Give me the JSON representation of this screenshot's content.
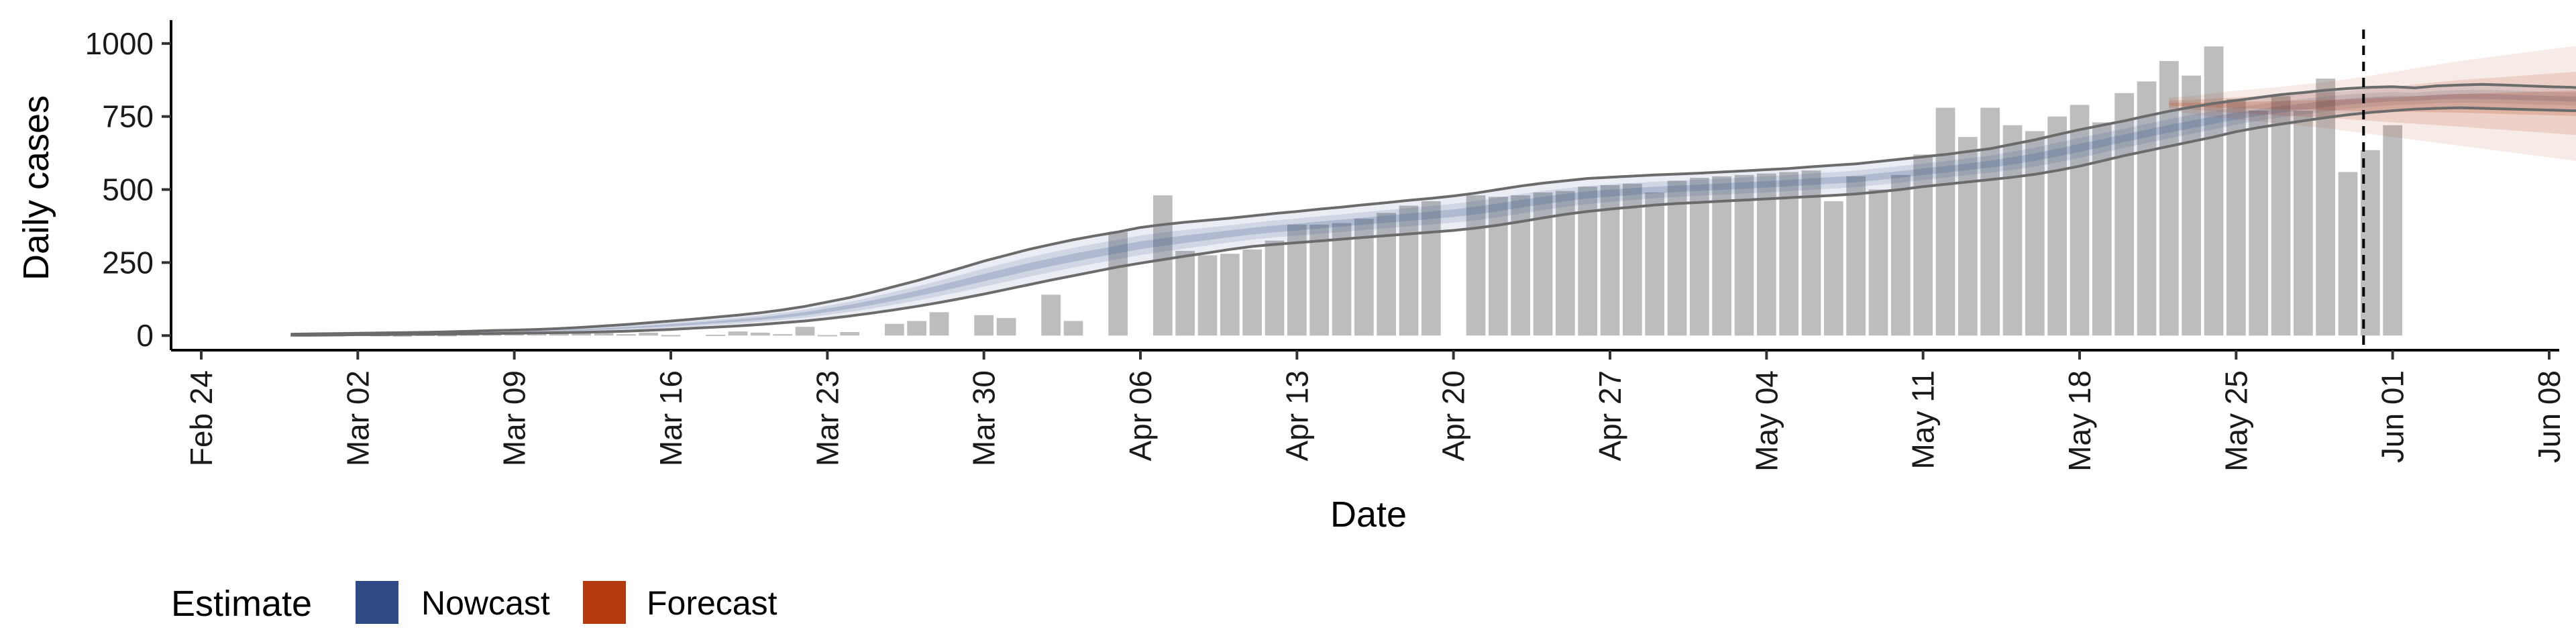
{
  "chart_data": {
    "type": "bar",
    "title": "",
    "xlabel": "Date",
    "ylabel": "Daily cases",
    "x_ticks": [
      "Feb 24",
      "Mar 02",
      "Mar 09",
      "Mar 16",
      "Mar 23",
      "Mar 30",
      "Apr 06",
      "Apr 13",
      "Apr 20",
      "Apr 27",
      "May 04",
      "May 11",
      "May 18",
      "May 25",
      "Jun 01",
      "Jun 08"
    ],
    "y_ticks": [
      "0",
      "250",
      "500",
      "750",
      "1000"
    ],
    "xlim": [
      "2020-02-24",
      "2020-06-08"
    ],
    "ylim": [
      -50,
      1080
    ],
    "grid": false,
    "legend_position": "bottom-left",
    "legend": {
      "title": "Estimate",
      "items": [
        {
          "label": "Nowcast",
          "color": "#2f4b85"
        },
        {
          "label": "Forecast",
          "color": "#b33b0f"
        }
      ]
    },
    "bar_color": "#bdbdbd",
    "forecast_start": "2020-05-31",
    "cases": {
      "start": "2020-02-29",
      "values": [
        0,
        2,
        3,
        2,
        1,
        3,
        2,
        4,
        5,
        6,
        7,
        10,
        12,
        8,
        5,
        10,
        2,
        0,
        3,
        14,
        10,
        5,
        30,
        2,
        12,
        0,
        40,
        50,
        80,
        0,
        70,
        60,
        0,
        140,
        50,
        0,
        355,
        0,
        480,
        290,
        275,
        280,
        295,
        325,
        380,
        380,
        385,
        400,
        420,
        445,
        460,
        0,
        480,
        475,
        480,
        490,
        495,
        510,
        515,
        520,
        490,
        530,
        540,
        545,
        550,
        555,
        560,
        565,
        460,
        545,
        500,
        550,
        620,
        780,
        680,
        780,
        720,
        700,
        750,
        790,
        730,
        830,
        870,
        940,
        890,
        990,
        810,
        770,
        820,
        770,
        880,
        560,
        635,
        720
      ]
    },
    "nowcast": {
      "start": "2020-02-28",
      "upper": [
        5,
        6,
        7,
        8,
        9,
        10,
        11,
        13,
        15,
        17,
        19,
        21,
        24,
        28,
        33,
        38,
        44,
        50,
        56,
        63,
        70,
        78,
        88,
        100,
        115,
        130,
        148,
        168,
        188,
        210,
        232,
        255,
        275,
        295,
        312,
        328,
        342,
        355,
        370,
        380,
        388,
        395,
        402,
        410,
        418,
        425,
        433,
        440,
        448,
        455,
        463,
        470,
        478,
        488,
        500,
        512,
        522,
        530,
        538,
        542,
        546,
        550,
        553,
        556,
        560,
        564,
        568,
        572,
        578,
        583,
        588,
        596,
        604,
        612,
        620,
        630,
        640,
        655,
        670,
        688,
        705,
        720,
        735,
        752,
        768,
        782,
        795,
        805,
        815,
        825,
        832,
        840,
        846,
        850,
        852,
        848,
        855,
        858,
        860,
        858,
        855,
        852,
        850,
        845,
        840,
        835,
        830,
        825,
        820
      ],
      "lower": [
        1,
        1,
        2,
        3,
        3,
        4,
        5,
        5,
        6,
        7,
        8,
        9,
        10,
        11,
        13,
        15,
        18,
        21,
        25,
        29,
        33,
        38,
        44,
        50,
        58,
        67,
        77,
        88,
        100,
        113,
        127,
        142,
        158,
        174,
        190,
        205,
        220,
        235,
        248,
        260,
        272,
        283,
        295,
        305,
        312,
        318,
        324,
        330,
        336,
        342,
        348,
        354,
        360,
        368,
        378,
        390,
        403,
        415,
        425,
        433,
        440,
        447,
        452,
        456,
        460,
        464,
        468,
        472,
        476,
        480,
        485,
        492,
        500,
        510,
        518,
        526,
        534,
        542,
        552,
        565,
        580,
        598,
        616,
        632,
        648,
        664,
        680,
        698,
        712,
        724,
        735,
        746,
        756,
        764,
        770,
        775,
        778,
        780,
        778,
        776,
        774,
        772,
        770,
        768,
        765,
        762,
        760,
        758,
        755
      ]
    },
    "forecast": {
      "start": "2020-05-22",
      "upper": [
        815,
        820,
        830,
        838,
        845,
        852,
        860,
        868,
        878,
        890,
        902,
        915,
        928,
        940,
        950,
        960,
        970,
        980,
        990,
        1000,
        1010,
        1020,
        1030
      ],
      "lower": [
        770,
        760,
        750,
        740,
        733,
        725,
        718,
        710,
        700,
        690,
        680,
        670,
        660,
        650,
        640,
        630,
        620,
        610,
        600,
        585,
        570,
        558,
        545
      ]
    }
  }
}
